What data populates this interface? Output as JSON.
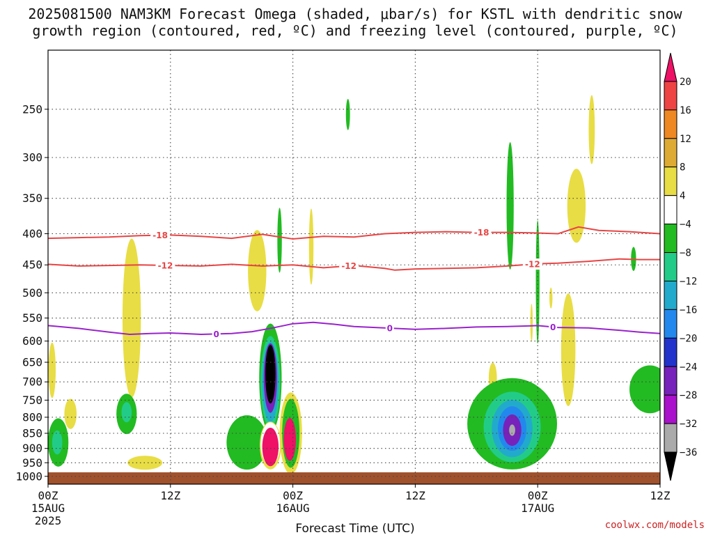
{
  "chart_data": {
    "type": "heatmap",
    "title_line1": "2025081500 NAM3KM Forecast Omega (shaded, μbar/s) for KSTL with dendritic snow",
    "title_line2": "growth region (contoured, red, ºC) and freezing level (contoured, purple, ºC)",
    "xlabel": "Forecast Time (UTC)",
    "credit": "coolwx.com/models",
    "x_ticks": [
      {
        "hour": 0,
        "l1": "00Z",
        "l2": "15AUG",
        "l3": "2025"
      },
      {
        "hour": 12,
        "l1": "12Z",
        "l2": "",
        "l3": ""
      },
      {
        "hour": 24,
        "l1": "00Z",
        "l2": "16AUG",
        "l3": ""
      },
      {
        "hour": 36,
        "l1": "12Z",
        "l2": "",
        "l3": ""
      },
      {
        "hour": 48,
        "l1": "00Z",
        "l2": "17AUG",
        "l3": ""
      },
      {
        "hour": 60,
        "l1": "12Z",
        "l2": "",
        "l3": ""
      }
    ],
    "xlim": [
      0,
      60
    ],
    "y_ticks": [
      250,
      300,
      350,
      400,
      450,
      500,
      550,
      600,
      650,
      700,
      750,
      800,
      850,
      900,
      950,
      1000
    ],
    "ylim": [
      200,
      1030
    ],
    "y_scale": "log-pressure",
    "grid": true,
    "colorbar": {
      "labels": [
        "20",
        "16",
        "12",
        "8",
        "4",
        "−4",
        "−8",
        "−12",
        "−16",
        "−20",
        "−24",
        "−28",
        "−32",
        "−36"
      ],
      "colors": [
        "#ee1166",
        "#ee4444",
        "#ee8822",
        "#ddaa33",
        "#e8dd44",
        "#ffffff",
        "#22bb22",
        "#22cc88",
        "#22aacc",
        "#2288ee",
        "#2233cc",
        "#7722bb",
        "#aa11cc",
        "#aaaaaa",
        "#000000"
      ]
    },
    "contours": [
      {
        "name": "-18",
        "color": "#e84444",
        "points": [
          [
            0,
            407
          ],
          [
            3,
            406
          ],
          [
            6,
            405
          ],
          [
            9,
            403
          ],
          [
            12,
            402
          ],
          [
            15,
            404
          ],
          [
            18,
            407
          ],
          [
            21,
            401
          ],
          [
            24,
            408
          ],
          [
            27,
            404
          ],
          [
            30,
            405
          ],
          [
            33,
            400
          ],
          [
            36,
            398
          ],
          [
            39,
            397
          ],
          [
            42,
            398
          ],
          [
            45,
            398
          ],
          [
            48,
            399
          ],
          [
            50,
            400
          ],
          [
            52,
            390
          ],
          [
            54,
            395
          ],
          [
            57,
            397
          ],
          [
            60,
            400
          ]
        ],
        "labels": [
          {
            "x": 11,
            "text": "-18"
          },
          {
            "x": 42.5,
            "text": "-18"
          }
        ]
      },
      {
        "name": "-12",
        "color": "#e84444",
        "points": [
          [
            0,
            449
          ],
          [
            3,
            452
          ],
          [
            6,
            451
          ],
          [
            9,
            450
          ],
          [
            12,
            451
          ],
          [
            15,
            452
          ],
          [
            18,
            449
          ],
          [
            21,
            452
          ],
          [
            24,
            450
          ],
          [
            27,
            455
          ],
          [
            30,
            451
          ],
          [
            33,
            456
          ],
          [
            34,
            459
          ],
          [
            36,
            457
          ],
          [
            39,
            456
          ],
          [
            42,
            455
          ],
          [
            45,
            452
          ],
          [
            48,
            448
          ],
          [
            50,
            447
          ],
          [
            53,
            444
          ],
          [
            56,
            440
          ],
          [
            58,
            441
          ],
          [
            60,
            441
          ]
        ],
        "labels": [
          {
            "x": 11.5,
            "text": "-12"
          },
          {
            "x": 29.5,
            "text": "-12"
          },
          {
            "x": 47.5,
            "text": "-12"
          }
        ]
      },
      {
        "name": "0",
        "color": "#9922cc",
        "points": [
          [
            0,
            566
          ],
          [
            3,
            572
          ],
          [
            6,
            580
          ],
          [
            8,
            585
          ],
          [
            10,
            583
          ],
          [
            12,
            582
          ],
          [
            15,
            585
          ],
          [
            18,
            583
          ],
          [
            20,
            579
          ],
          [
            22,
            571
          ],
          [
            24,
            562
          ],
          [
            26,
            559
          ],
          [
            28,
            563
          ],
          [
            30,
            568
          ],
          [
            33,
            571
          ],
          [
            36,
            574
          ],
          [
            39,
            572
          ],
          [
            42,
            569
          ],
          [
            45,
            568
          ],
          [
            48,
            566
          ],
          [
            50,
            570
          ],
          [
            53,
            571
          ],
          [
            56,
            576
          ],
          [
            58,
            580
          ],
          [
            60,
            583
          ]
        ],
        "labels": [
          {
            "x": 16.5,
            "text": "0"
          },
          {
            "x": 33.5,
            "text": "0"
          },
          {
            "x": 49.5,
            "text": "0"
          }
        ]
      }
    ],
    "blobs": [
      {
        "c": "#e8dd44",
        "x": 0.4,
        "p": 670,
        "rx": 0.35,
        "rp": 70
      },
      {
        "c": "#e8dd44",
        "x": 2.2,
        "p": 790,
        "rx": 0.6,
        "rp": 45
      },
      {
        "c": "#22bb22",
        "x": 1.0,
        "p": 880,
        "rx": 1.0,
        "rp": 80
      },
      {
        "c": "#22cc88",
        "x": 0.9,
        "p": 880,
        "rx": 0.5,
        "rp": 40
      },
      {
        "c": "#e8dd44",
        "x": 8.2,
        "p": 550,
        "rx": 0.9,
        "rp": 160
      },
      {
        "c": "#22bb22",
        "x": 7.7,
        "p": 790,
        "rx": 1.0,
        "rp": 60
      },
      {
        "c": "#22cc88",
        "x": 7.7,
        "p": 785,
        "rx": 0.5,
        "rp": 30
      },
      {
        "c": "#e8dd44",
        "x": 9.5,
        "p": 950,
        "rx": 1.7,
        "rp": 25
      },
      {
        "c": "#e8dd44",
        "x": 20.5,
        "p": 460,
        "rx": 0.9,
        "rp": 70
      },
      {
        "c": "#22bb22",
        "x": 22.7,
        "p": 410,
        "rx": 0.22,
        "rp": 50
      },
      {
        "c": "#e8dd44",
        "x": 25.8,
        "p": 420,
        "rx": 0.22,
        "rp": 60
      },
      {
        "c": "#22bb22",
        "x": 29.4,
        "p": 255,
        "rx": 0.2,
        "rp": 15
      },
      {
        "c": "#22bb22",
        "x": 19.5,
        "p": 880,
        "rx": 2.0,
        "rp": 90
      },
      {
        "c": "#22bb22",
        "x": 21.8,
        "p": 690,
        "rx": 1.1,
        "rp": 140
      },
      {
        "c": "#22cc88",
        "x": 21.8,
        "p": 700,
        "rx": 0.95,
        "rp": 120
      },
      {
        "c": "#22aacc",
        "x": 21.8,
        "p": 700,
        "rx": 0.8,
        "rp": 105
      },
      {
        "c": "#7722bb",
        "x": 21.8,
        "p": 690,
        "rx": 0.65,
        "rp": 90
      },
      {
        "c": "#000000",
        "x": 21.8,
        "p": 680,
        "rx": 0.5,
        "rp": 75
      },
      {
        "c": "#e8dd44",
        "x": 21.8,
        "p": 890,
        "rx": 1.05,
        "rp": 80
      },
      {
        "c": "#ffffff",
        "x": 21.8,
        "p": 885,
        "rx": 0.95,
        "rp": 72
      },
      {
        "c": "#ee1166",
        "x": 21.8,
        "p": 895,
        "rx": 0.8,
        "rp": 65
      },
      {
        "c": "#e8dd44",
        "x": 23.8,
        "p": 850,
        "rx": 1.1,
        "rp": 130
      },
      {
        "c": "#22bb22",
        "x": 23.8,
        "p": 850,
        "rx": 0.85,
        "rp": 110
      },
      {
        "c": "#ee1166",
        "x": 23.7,
        "p": 870,
        "rx": 0.6,
        "rp": 70
      },
      {
        "c": "#e8dd44",
        "x": 43.6,
        "p": 690,
        "rx": 0.4,
        "rp": 40
      },
      {
        "c": "#22bb22",
        "x": 45.3,
        "p": 360,
        "rx": 0.35,
        "rp": 85
      },
      {
        "c": "#22bb22",
        "x": 45.5,
        "p": 820,
        "rx": 4.4,
        "rp": 140
      },
      {
        "c": "#22cc88",
        "x": 45.5,
        "p": 830,
        "rx": 2.8,
        "rp": 110
      },
      {
        "c": "#22aacc",
        "x": 45.5,
        "p": 835,
        "rx": 2.0,
        "rp": 90
      },
      {
        "c": "#2288ee",
        "x": 45.5,
        "p": 835,
        "rx": 1.4,
        "rp": 70
      },
      {
        "c": "#7722bb",
        "x": 45.5,
        "p": 840,
        "rx": 0.9,
        "rp": 50
      },
      {
        "c": "#aaaaaa",
        "x": 45.5,
        "p": 840,
        "rx": 0.3,
        "rp": 18
      },
      {
        "c": "#22bb22",
        "x": 48.0,
        "p": 480,
        "rx": 0.18,
        "rp": 110
      },
      {
        "c": "#e8dd44",
        "x": 51.8,
        "p": 360,
        "rx": 0.9,
        "rp": 50
      },
      {
        "c": "#e8dd44",
        "x": 51.0,
        "p": 620,
        "rx": 0.7,
        "rp": 130
      },
      {
        "c": "#e8dd44",
        "x": 53.3,
        "p": 270,
        "rx": 0.3,
        "rp": 35
      },
      {
        "c": "#e8dd44",
        "x": 49.3,
        "p": 510,
        "rx": 0.15,
        "rp": 20
      },
      {
        "c": "#e8dd44",
        "x": 47.4,
        "p": 560,
        "rx": 0.12,
        "rp": 40
      },
      {
        "c": "#22bb22",
        "x": 57.4,
        "p": 440,
        "rx": 0.25,
        "rp": 20
      },
      {
        "c": "#22bb22",
        "x": 59.0,
        "p": 720,
        "rx": 2.0,
        "rp": 65
      }
    ],
    "surface": {
      "color": "#a0522d",
      "p_top": 985
    }
  }
}
